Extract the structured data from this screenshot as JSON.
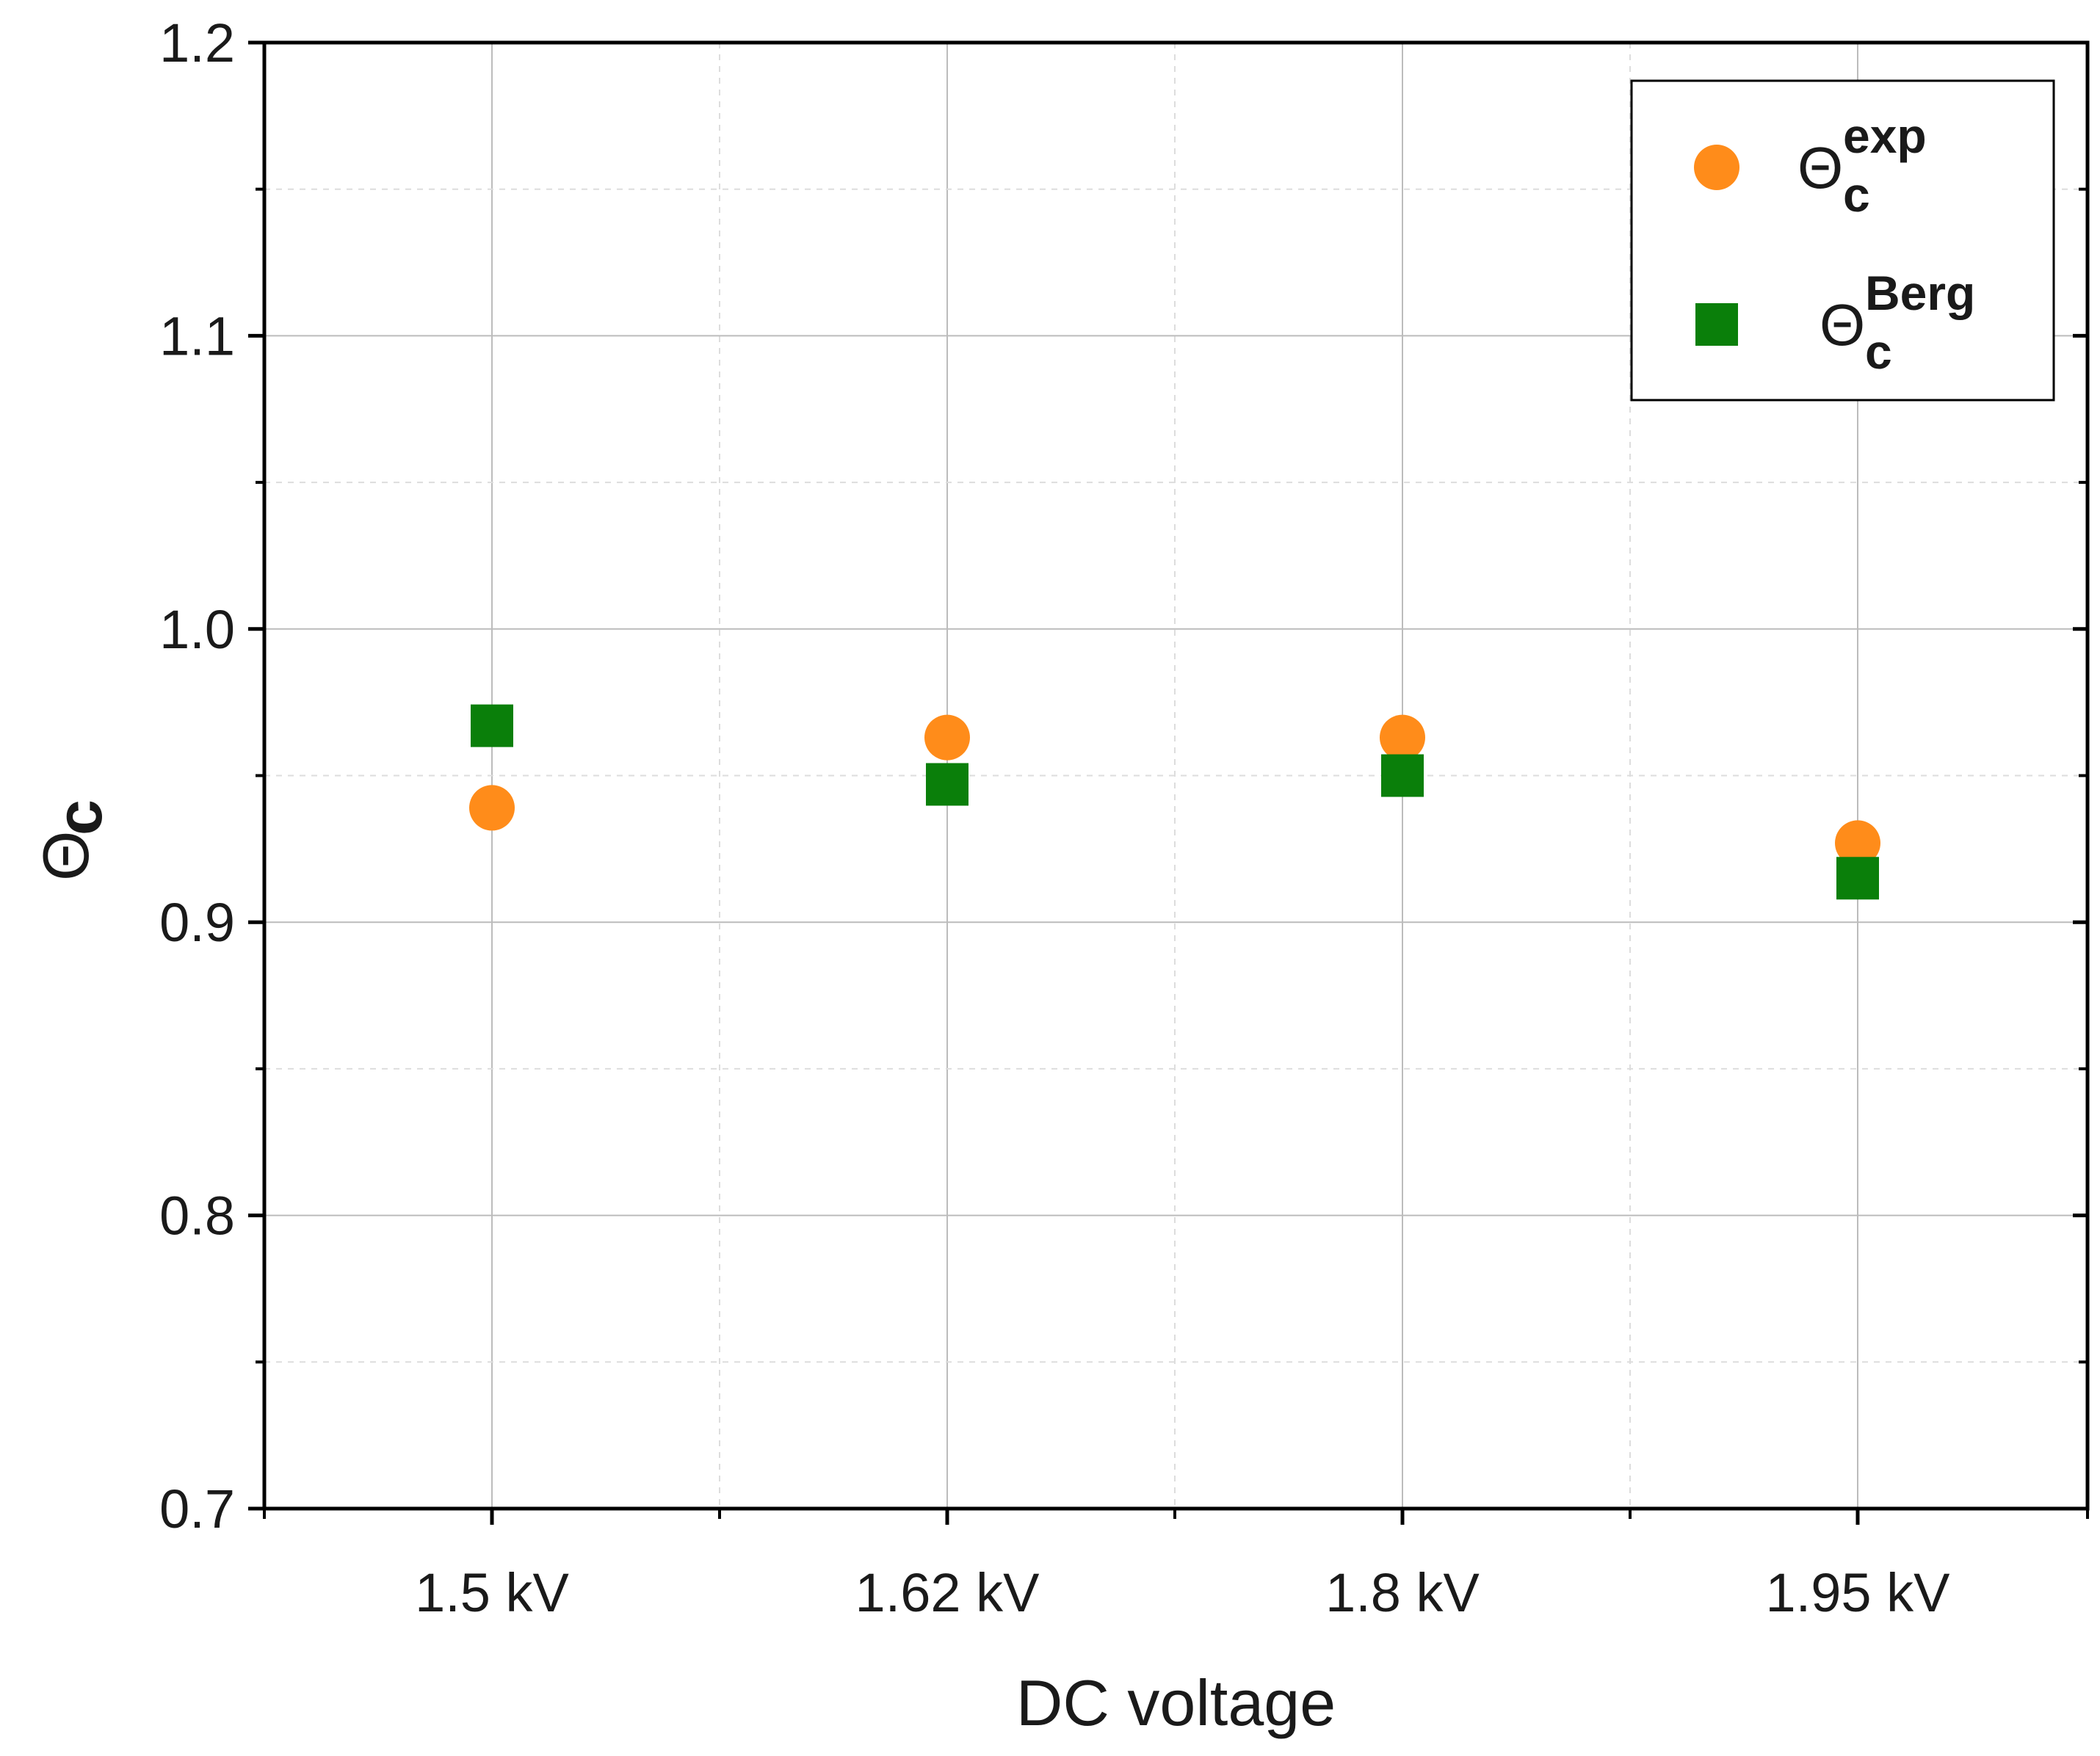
{
  "chart_data": {
    "type": "scatter",
    "title": "",
    "xlabel": "DC voltage",
    "ylabel": {
      "symbol": "Θ",
      "subscript": "c"
    },
    "categories": [
      "1.5 kV",
      "1.62 kV",
      "1.8 kV",
      "1.95 kV"
    ],
    "ylim": [
      0.7,
      1.2
    ],
    "yticks": [
      "0.7",
      "0.8",
      "0.9",
      "1.0",
      "1.1",
      "1.2"
    ],
    "grid": true,
    "legend_position": "top-right",
    "series": [
      {
        "name": "Θc exp",
        "symbol": "Θ",
        "superscript": "exp",
        "subscript": "c",
        "marker": "circle",
        "color": "#ff8c1a",
        "values": [
          0.939,
          0.963,
          0.963,
          0.927
        ]
      },
      {
        "name": "Θc Berg",
        "symbol": "Θ",
        "superscript": "Berg",
        "subscript": "c",
        "marker": "square",
        "color": "#0a7f0a",
        "values": [
          0.967,
          0.947,
          0.95,
          0.915
        ]
      }
    ]
  }
}
